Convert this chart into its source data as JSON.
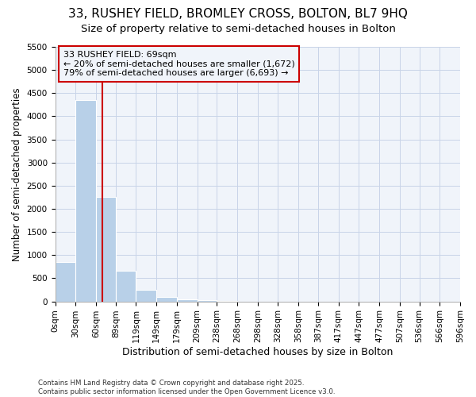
{
  "title": "33, RUSHEY FIELD, BROMLEY CROSS, BOLTON, BL7 9HQ",
  "subtitle": "Size of property relative to semi-detached houses in Bolton",
  "xlabel": "Distribution of semi-detached houses by size in Bolton",
  "ylabel": "Number of semi-detached properties",
  "bin_edges": [
    0,
    30,
    60,
    89,
    119,
    149,
    179,
    209,
    238,
    268,
    298,
    328,
    358,
    387,
    417,
    447,
    477,
    507,
    536,
    566,
    596
  ],
  "bar_heights": [
    850,
    4350,
    2250,
    670,
    250,
    100,
    50,
    30,
    10,
    0,
    0,
    0,
    0,
    0,
    0,
    0,
    0,
    0,
    0,
    0
  ],
  "bar_color": "#b8d0e8",
  "grid_color": "#c8d4e8",
  "background_color": "#ffffff",
  "plot_bg_color": "#f0f4fa",
  "property_size": 69,
  "vline_color": "#cc0000",
  "annotation_text": "33 RUSHEY FIELD: 69sqm\n← 20% of semi-detached houses are smaller (1,672)\n79% of semi-detached houses are larger (6,693) →",
  "annotation_box_color": "#cc0000",
  "ylim": [
    0,
    5500
  ],
  "yticks": [
    0,
    500,
    1000,
    1500,
    2000,
    2500,
    3000,
    3500,
    4000,
    4500,
    5000,
    5500
  ],
  "footnote": "Contains HM Land Registry data © Crown copyright and database right 2025.\nContains public sector information licensed under the Open Government Licence v3.0.",
  "title_fontsize": 11,
  "subtitle_fontsize": 9.5,
  "tick_fontsize": 7.5,
  "label_fontsize": 9,
  "annotation_fontsize": 8
}
